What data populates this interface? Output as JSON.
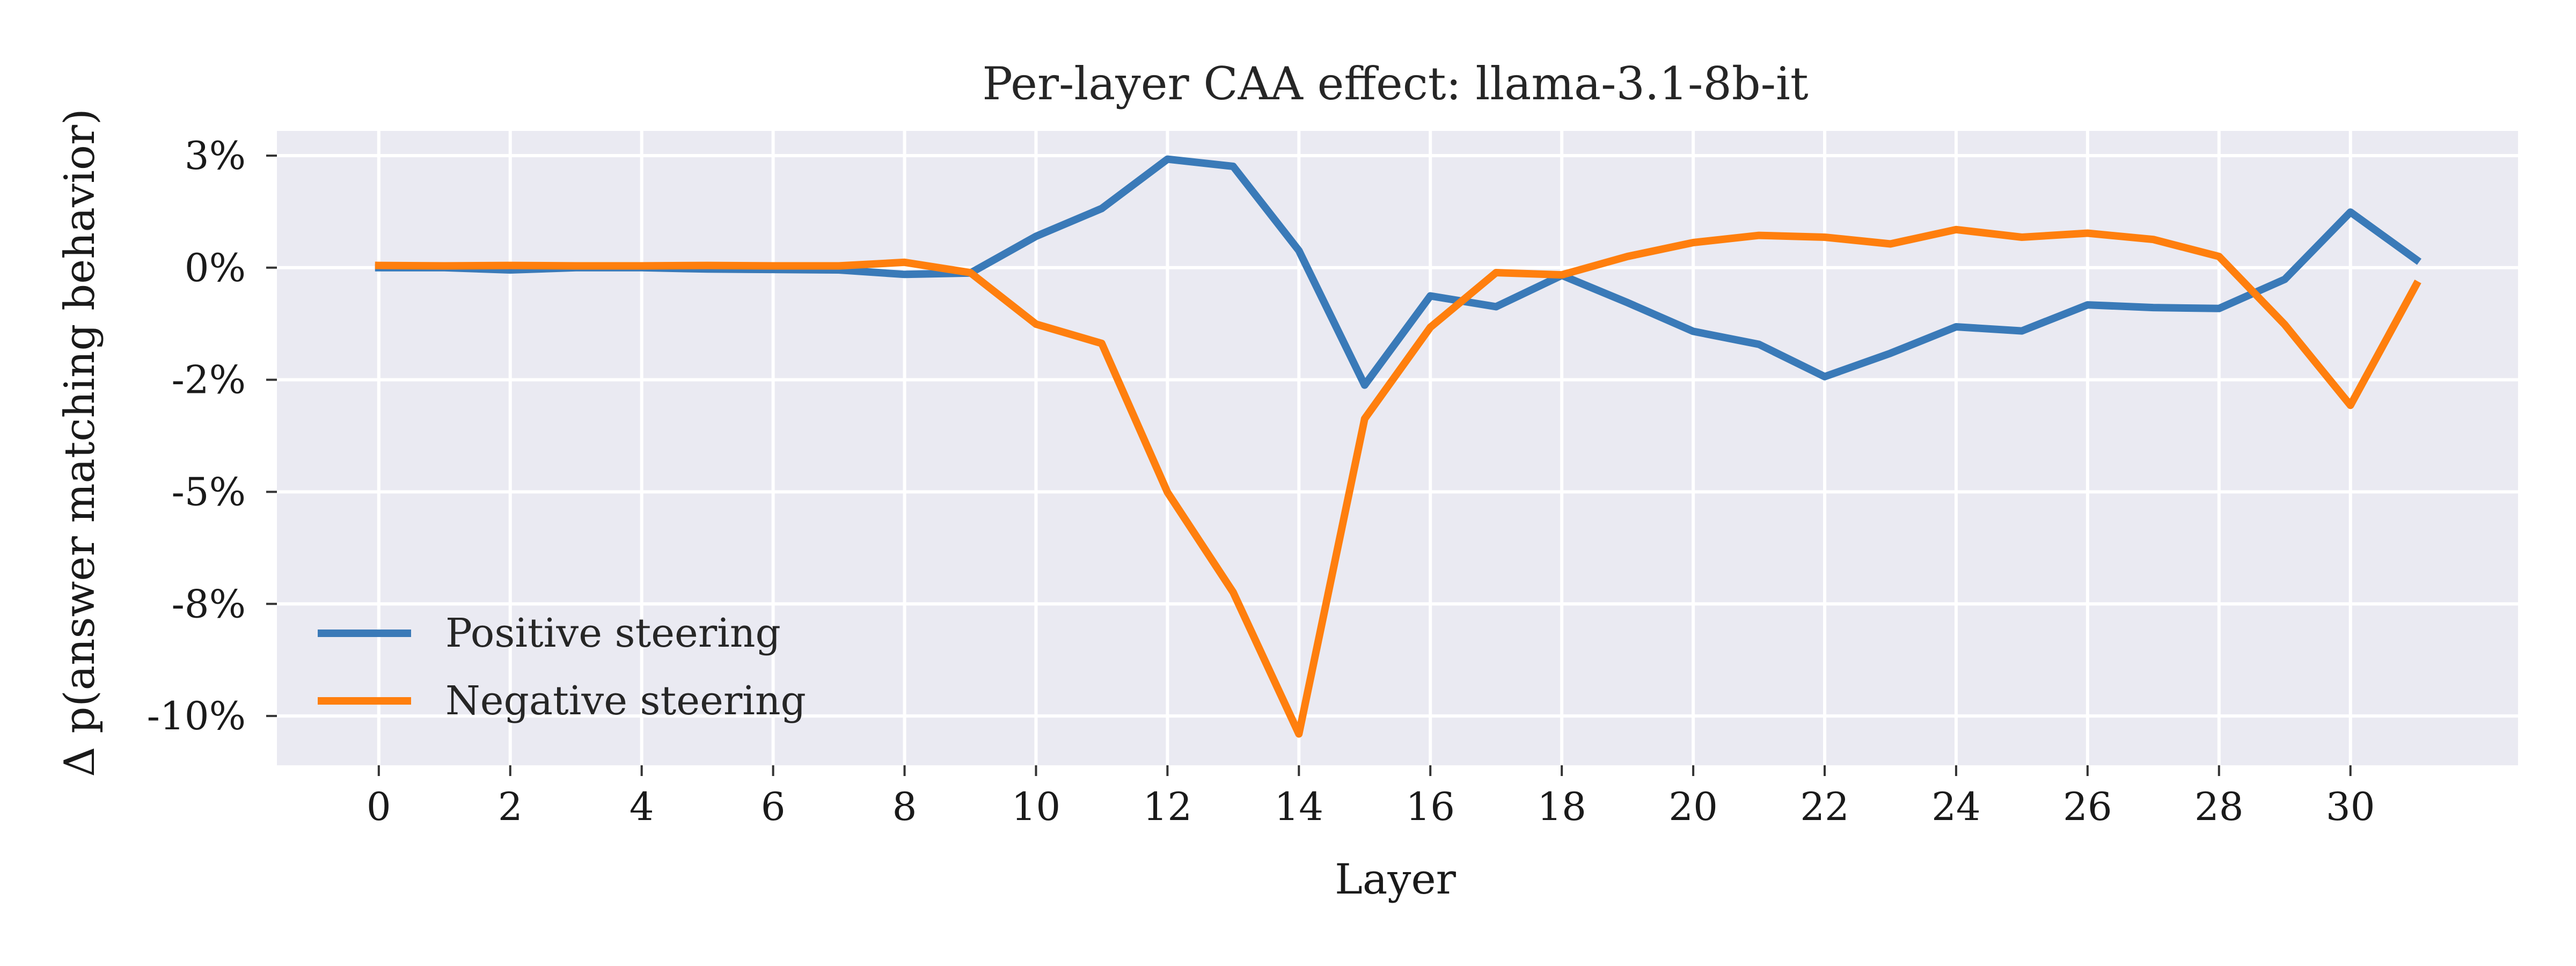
{
  "chart_data": {
    "type": "line",
    "title": "Per-layer CAA effect: llama-3.1-8b-it",
    "xlabel": "Layer",
    "ylabel": "Δ p(answer matching behavior)",
    "x": [
      0,
      1,
      2,
      3,
      4,
      5,
      6,
      7,
      8,
      9,
      10,
      11,
      12,
      13,
      14,
      15,
      16,
      17,
      18,
      19,
      20,
      21,
      22,
      23,
      24,
      25,
      26,
      27,
      28,
      29,
      30,
      31
    ],
    "xticks": [
      0,
      2,
      4,
      6,
      8,
      10,
      12,
      14,
      16,
      18,
      20,
      22,
      24,
      26,
      28,
      30
    ],
    "xtick_labels": [
      "0",
      "2",
      "4",
      "6",
      "8",
      "10",
      "12",
      "14",
      "16",
      "18",
      "20",
      "22",
      "24",
      "26",
      "28",
      "30"
    ],
    "yticks": [
      0.025,
      0,
      -0.025,
      -0.05,
      -0.075,
      -0.1
    ],
    "ytick_labels": [
      "3%",
      "0%",
      "-2%",
      "-5%",
      "-8%",
      "-10%"
    ],
    "xlim": [
      -1.55,
      32.55
    ],
    "ylim": [
      -0.111,
      0.0305
    ],
    "grid": true,
    "legend_position": "lower-left",
    "colors": {
      "background": "#eaeaf2",
      "grid": "#ffffff"
    },
    "series": [
      {
        "name": "Positive steering",
        "color": "#3a7ab8",
        "values": [
          0.0,
          0.0,
          -0.0005,
          0.0,
          0.0,
          -0.0003,
          -0.0004,
          -0.0005,
          -0.0015,
          -0.0012,
          0.007,
          0.0132,
          0.0242,
          0.0226,
          0.0038,
          -0.0262,
          -0.0063,
          -0.0087,
          -0.0017,
          -0.0078,
          -0.0142,
          -0.0171,
          -0.0243,
          -0.0191,
          -0.0132,
          -0.0141,
          -0.0083,
          -0.0089,
          -0.0091,
          -0.0026,
          0.0124,
          0.0018
        ]
      },
      {
        "name": "Negative steering",
        "color": "#ff7f0e",
        "values": [
          0.0005,
          0.0004,
          0.0005,
          0.0004,
          0.0004,
          0.0005,
          0.0004,
          0.0004,
          0.0012,
          -0.0011,
          -0.0126,
          -0.0169,
          -0.0501,
          -0.0724,
          -0.104,
          -0.0337,
          -0.0133,
          -0.0011,
          -0.0016,
          0.0025,
          0.0056,
          0.0072,
          0.0068,
          0.0053,
          0.0085,
          0.0068,
          0.0077,
          0.0063,
          0.0025,
          -0.0127,
          -0.0307,
          -0.0038
        ]
      }
    ]
  }
}
